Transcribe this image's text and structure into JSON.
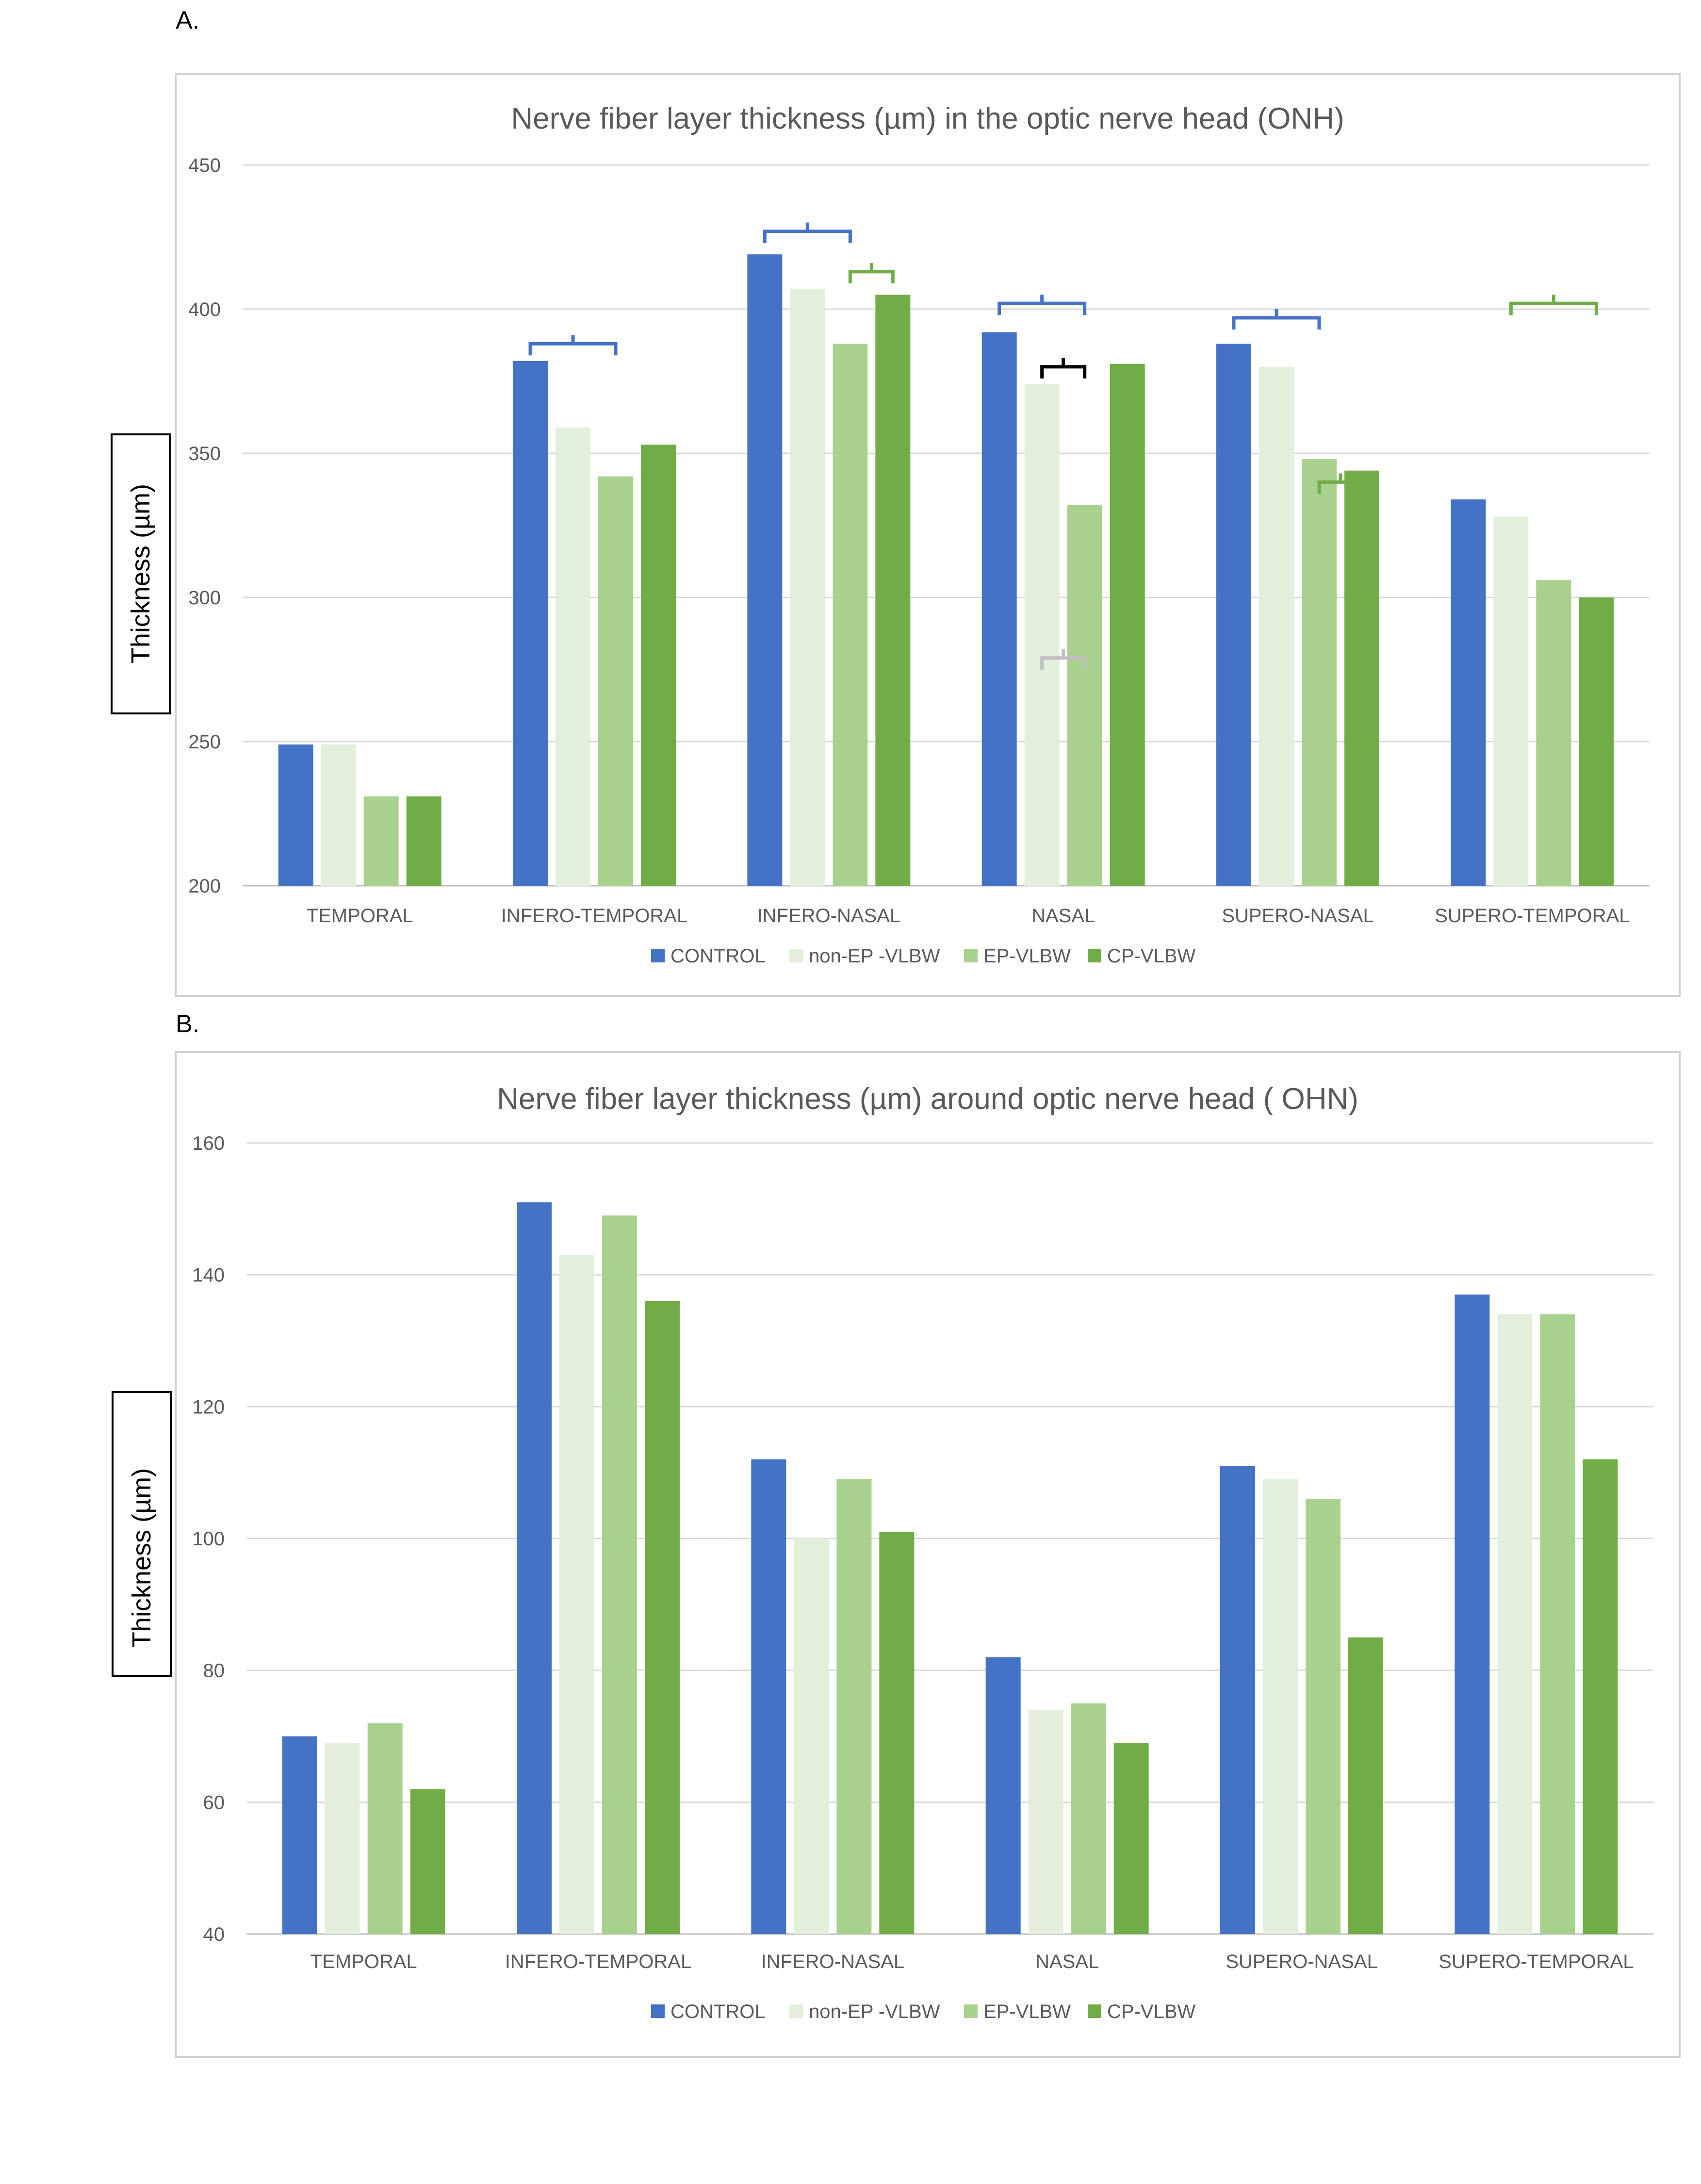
{
  "panels": {
    "a": {
      "label": "A."
    },
    "b": {
      "label": "B."
    }
  },
  "colors": {
    "CONTROL": "#4472c4",
    "non-EP -VLBW": "#e2efda",
    "EP-VLBW": "#a9d18e",
    "CP-VLBW": "#70ad47",
    "bracket_blue": "#4472c4",
    "bracket_green": "#70ad47",
    "bracket_black": "#000000",
    "bracket_gray": "#bfbfbf"
  },
  "chart_data": [
    {
      "type": "bar",
      "title": "Nerve fiber layer thickness (µm) in the optic nerve head (ONH)",
      "ylabel": "Thickness (µm)",
      "xlabel": "",
      "ylim": [
        200,
        450
      ],
      "yticks": [
        200,
        250,
        300,
        350,
        400,
        450
      ],
      "grid": true,
      "legend": "bottom",
      "categories": [
        "TEMPORAL",
        "INFERO-TEMPORAL",
        "INFERO-NASAL",
        "NASAL",
        "SUPERO-NASAL",
        "SUPERO-TEMPORAL"
      ],
      "series": [
        {
          "name": "CONTROL",
          "values": [
            249,
            382,
            419,
            392,
            388,
            334
          ]
        },
        {
          "name": "non-EP -VLBW",
          "values": [
            249,
            359,
            407,
            374,
            380,
            328
          ]
        },
        {
          "name": "EP-VLBW",
          "values": [
            231,
            342,
            388,
            332,
            348,
            306
          ]
        },
        {
          "name": "CP-VLBW",
          "values": [
            231,
            353,
            405,
            381,
            344,
            300
          ]
        }
      ],
      "brackets": [
        {
          "category": 1,
          "from_series": 0,
          "to_series": 2,
          "y": 388,
          "color": "bracket_blue"
        },
        {
          "category": 2,
          "from_series": 0,
          "to_series": 2,
          "y": 427,
          "color": "bracket_blue"
        },
        {
          "category": 2,
          "from_series": 2,
          "to_series": 3,
          "y": 413,
          "color": "bracket_green"
        },
        {
          "category": 3,
          "from_series": 0,
          "to_series": 2,
          "y": 402,
          "color": "bracket_blue"
        },
        {
          "category": 3,
          "from_series": 1,
          "to_series": 2,
          "y": 380,
          "color": "bracket_black"
        },
        {
          "category": 3,
          "from_series": 1,
          "to_series": 2,
          "y": 279,
          "color": "bracket_gray"
        },
        {
          "category": 4,
          "from_series": 0,
          "to_series": 2,
          "y": 397,
          "color": "bracket_blue"
        },
        {
          "category": 4,
          "from_series": 2,
          "to_series": 3,
          "y": 340,
          "color": "bracket_green"
        },
        {
          "category": 5,
          "from_series": 1,
          "to_series": 3,
          "y": 402,
          "color": "bracket_green"
        }
      ]
    },
    {
      "type": "bar",
      "title": "Nerve fiber layer thickness (µm) around  optic nerve head ( OHN)",
      "ylabel": "Thickness (µm)",
      "xlabel": "",
      "ylim": [
        40,
        160
      ],
      "yticks": [
        40,
        60,
        80,
        100,
        120,
        140,
        160
      ],
      "grid": true,
      "legend": "bottom",
      "categories": [
        "TEMPORAL",
        "INFERO-TEMPORAL",
        "INFERO-NASAL",
        "NASAL",
        "SUPERO-NASAL",
        "SUPERO-TEMPORAL"
      ],
      "series": [
        {
          "name": "CONTROL",
          "values": [
            70,
            151,
            112,
            82,
            111,
            137
          ]
        },
        {
          "name": "non-EP -VLBW",
          "values": [
            69,
            143,
            100,
            74,
            109,
            134
          ]
        },
        {
          "name": "EP-VLBW",
          "values": [
            72,
            149,
            109,
            75,
            106,
            134
          ]
        },
        {
          "name": "CP-VLBW",
          "values": [
            62,
            136,
            101,
            69,
            85,
            112
          ]
        }
      ],
      "brackets": []
    }
  ]
}
